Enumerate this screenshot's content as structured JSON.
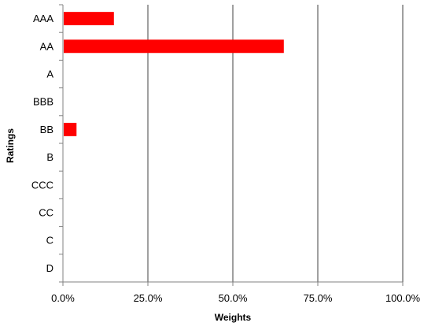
{
  "chart_data": {
    "type": "bar",
    "orientation": "horizontal",
    "categories": [
      "AAA",
      "AA",
      "A",
      "BBB",
      "BB",
      "B",
      "CCC",
      "CC",
      "C",
      "D"
    ],
    "values": [
      15,
      65,
      0,
      0,
      4,
      0,
      0,
      0,
      0,
      0
    ],
    "xlabel": "Weights",
    "ylabel": "Ratings",
    "xlim": [
      0,
      100
    ],
    "x_ticks": [
      "0.0%",
      "25.0%",
      "50.0%",
      "75.0%",
      "100.0%"
    ],
    "grid": "vertical",
    "legend": "none",
    "colors": {
      "bar": "#ff0000",
      "grid": "#808080",
      "axis": "#808080"
    }
  }
}
